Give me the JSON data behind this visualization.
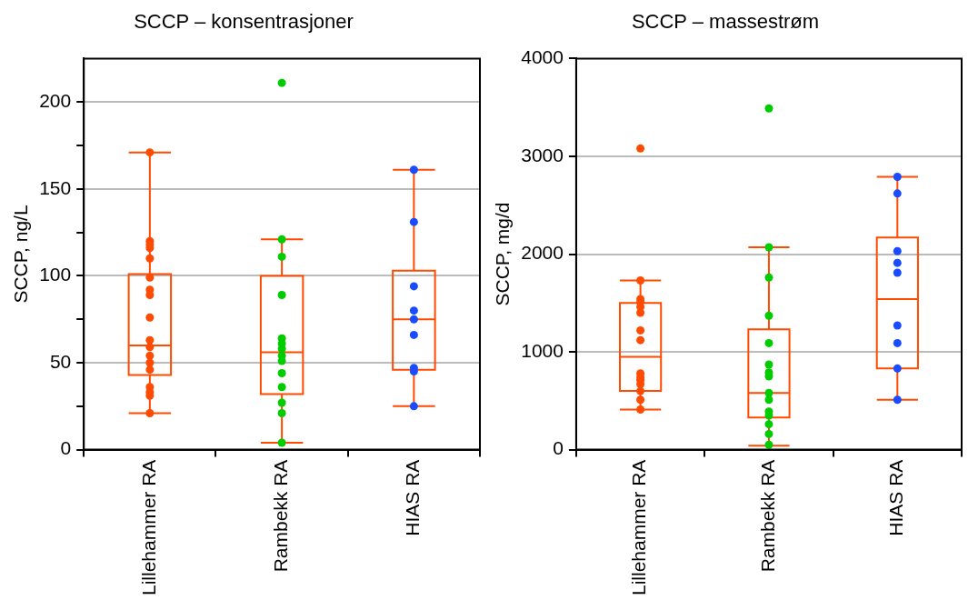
{
  "chart_data": [
    {
      "type": "box",
      "title": "SCCP – konsentrasjoner",
      "ylabel": "SCCP, ng/L",
      "categories": [
        "Lillehammer RA",
        "Rambekk RA",
        "HIAS RA"
      ],
      "ylim": [
        0,
        225
      ],
      "yticks": [
        0,
        {
          "value": 25,
          "label": null
        },
        50,
        {
          "value": 75,
          "label": null
        },
        100,
        {
          "value": 125,
          "label": null
        },
        150,
        {
          "value": 175,
          "label": null
        },
        200
      ],
      "grid": "y",
      "legend": false,
      "marker": "circle",
      "series": [
        {
          "type": "box",
          "color": "#ff4a00",
          "boxes": [
            {
              "low": 21,
              "q1": 43,
              "median": 60,
              "q3": 101,
              "high": 171
            },
            {
              "low": 4,
              "q1": 32,
              "median": 56,
              "q3": 100,
              "high": 121
            },
            {
              "low": 25,
              "q1": 46,
              "median": 75,
              "q3": 103,
              "high": 161
            }
          ]
        },
        {
          "type": "scatter",
          "color": "#ff4a00",
          "x": [
            "Lillehammer RA",
            "Lillehammer RA",
            "Lillehammer RA",
            "Lillehammer RA",
            "Lillehammer RA",
            "Lillehammer RA",
            "Lillehammer RA",
            "Lillehammer RA",
            "Lillehammer RA",
            "Lillehammer RA",
            "Lillehammer RA",
            "Lillehammer RA",
            "Lillehammer RA",
            "Lillehammer RA",
            "Lillehammer RA",
            "Lillehammer RA",
            "Lillehammer RA",
            "Lillehammer RA"
          ],
          "values": [
            171,
            120,
            118,
            116,
            110,
            99,
            92,
            89,
            76,
            63,
            59,
            54,
            50,
            46,
            36,
            33,
            31,
            21
          ]
        },
        {
          "type": "scatter",
          "color": "#00cc00",
          "x": [
            "Rambekk RA",
            "Rambekk RA",
            "Rambekk RA",
            "Rambekk RA",
            "Rambekk RA",
            "Rambekk RA",
            "Rambekk RA",
            "Rambekk RA",
            "Rambekk RA",
            "Rambekk RA",
            "Rambekk RA",
            "Rambekk RA",
            "Rambekk RA",
            "Rambekk RA"
          ],
          "values": [
            211,
            121,
            111,
            89,
            64,
            61,
            58,
            54,
            51,
            44,
            36,
            27,
            21,
            4
          ]
        },
        {
          "type": "scatter",
          "color": "#1a4cff",
          "x": [
            "HIAS RA",
            "HIAS RA",
            "HIAS RA",
            "HIAS RA",
            "HIAS RA",
            "HIAS RA",
            "HIAS RA",
            "HIAS RA",
            "HIAS RA"
          ],
          "values": [
            161,
            131,
            94,
            80,
            75,
            66,
            47,
            45,
            25
          ]
        }
      ]
    },
    {
      "type": "box",
      "title": "SCCP – massestrøm",
      "ylabel": "SCCP, mg/d",
      "categories": [
        "Lillehammer RA",
        "Rambekk RA",
        "HIAS RA"
      ],
      "ylim": [
        0,
        4000
      ],
      "yticks": [
        0,
        1000,
        2000,
        3000,
        4000
      ],
      "grid": "y",
      "legend": false,
      "marker": "circle",
      "series": [
        {
          "type": "box",
          "color": "#ff4a00",
          "boxes": [
            {
              "low": 410,
              "q1": 600,
              "median": 950,
              "q3": 1500,
              "high": 1730
            },
            {
              "low": 40,
              "q1": 330,
              "median": 580,
              "q3": 1230,
              "high": 2070
            },
            {
              "low": 510,
              "q1": 830,
              "median": 1540,
              "q3": 2170,
              "high": 2790
            }
          ]
        },
        {
          "type": "scatter",
          "color": "#ff4a00",
          "x": [
            "Lillehammer RA",
            "Lillehammer RA",
            "Lillehammer RA",
            "Lillehammer RA",
            "Lillehammer RA",
            "Lillehammer RA",
            "Lillehammer RA",
            "Lillehammer RA",
            "Lillehammer RA",
            "Lillehammer RA",
            "Lillehammer RA",
            "Lillehammer RA",
            "Lillehammer RA",
            "Lillehammer RA",
            "Lillehammer RA"
          ],
          "values": [
            3080,
            1730,
            1540,
            1510,
            1460,
            1400,
            1220,
            1120,
            780,
            740,
            710,
            670,
            600,
            510,
            410
          ]
        },
        {
          "type": "scatter",
          "color": "#00cc00",
          "x": [
            "Rambekk RA",
            "Rambekk RA",
            "Rambekk RA",
            "Rambekk RA",
            "Rambekk RA",
            "Rambekk RA",
            "Rambekk RA",
            "Rambekk RA",
            "Rambekk RA",
            "Rambekk RA",
            "Rambekk RA",
            "Rambekk RA",
            "Rambekk RA",
            "Rambekk RA",
            "Rambekk RA"
          ],
          "values": [
            3490,
            2070,
            1760,
            1370,
            1090,
            870,
            790,
            750,
            580,
            510,
            390,
            350,
            260,
            160,
            50
          ]
        },
        {
          "type": "scatter",
          "color": "#1a4cff",
          "x": [
            "HIAS RA",
            "HIAS RA",
            "HIAS RA",
            "HIAS RA",
            "HIAS RA",
            "HIAS RA",
            "HIAS RA",
            "HIAS RA",
            "HIAS RA"
          ],
          "values": [
            2790,
            2620,
            2030,
            1910,
            1810,
            1270,
            1090,
            830,
            510
          ]
        }
      ]
    }
  ]
}
